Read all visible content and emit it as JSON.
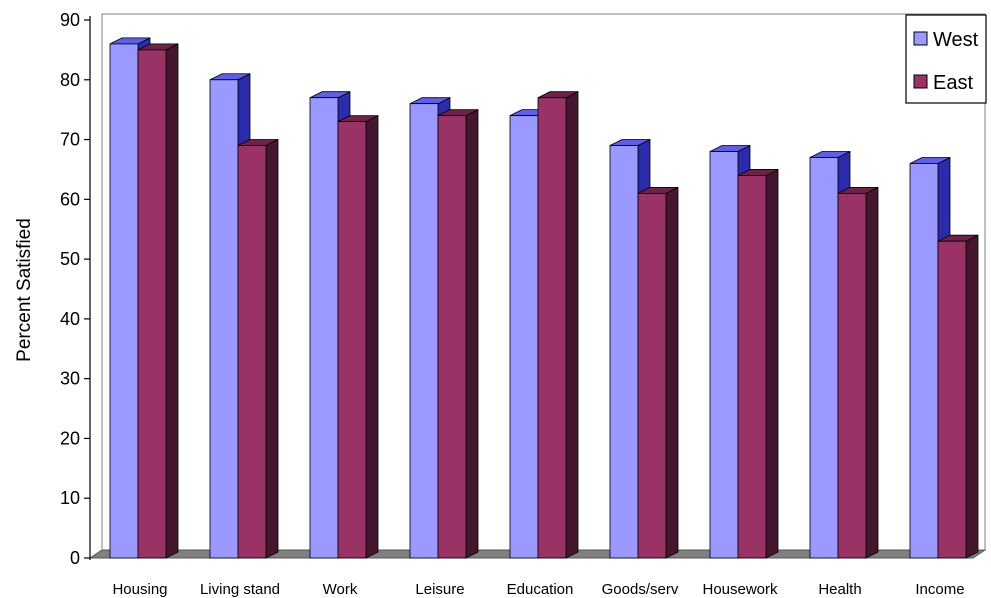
{
  "chart_data": {
    "type": "bar",
    "title": "",
    "xlabel": "",
    "ylabel": "Percent Satisfied",
    "ylim": [
      0,
      90
    ],
    "yticks": [
      0,
      10,
      20,
      30,
      40,
      50,
      60,
      70,
      80,
      90
    ],
    "grid": false,
    "three_d": true,
    "legend_position": "top-right",
    "categories": [
      "Housing",
      "Living stand",
      "Work",
      "Leisure",
      "Education",
      "Goods/serv",
      "Housework",
      "Health",
      "Income"
    ],
    "series": [
      {
        "name": "West",
        "color": "#9999ff",
        "values": [
          86,
          80,
          77,
          76,
          74,
          69,
          68,
          67,
          66
        ]
      },
      {
        "name": "East",
        "color": "#993366",
        "values": [
          85,
          69,
          73,
          74,
          77,
          61,
          64,
          61,
          53
        ]
      }
    ]
  }
}
